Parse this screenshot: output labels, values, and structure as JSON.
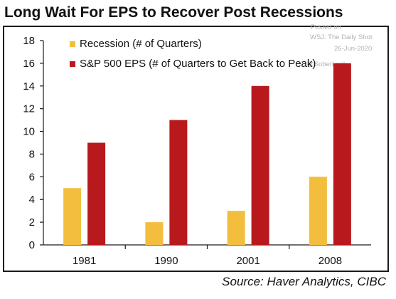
{
  "title": "Long Wait For EPS to Recover Post Recessions",
  "source": "Source: Haver Analytics, CIBC",
  "watermark": {
    "line1": "Posted on",
    "line2": "WSJ: The Daily Shot",
    "line3": "26-Jun-2020",
    "line4": "@SoberLook"
  },
  "colors": {
    "recession": "#F3BE3E",
    "eps": "#B7191C",
    "axis": "#1a1a1a",
    "frame": "#1a1a1a"
  },
  "chart_data": {
    "type": "bar",
    "categories": [
      "1981",
      "1990",
      "2001",
      "2008"
    ],
    "series": [
      {
        "name": "Recession (# of Quarters)",
        "values": [
          5,
          2,
          3,
          6
        ]
      },
      {
        "name": "S&P 500 EPS (# of Quarters to Get Back to Peak)",
        "values": [
          9,
          11,
          14,
          16
        ]
      }
    ],
    "yticks": [
      "0",
      "2",
      "4",
      "6",
      "8",
      "10",
      "12",
      "14",
      "16",
      "18"
    ],
    "ylim": [
      0,
      18
    ],
    "grid": false,
    "legend_position": "top-left"
  }
}
